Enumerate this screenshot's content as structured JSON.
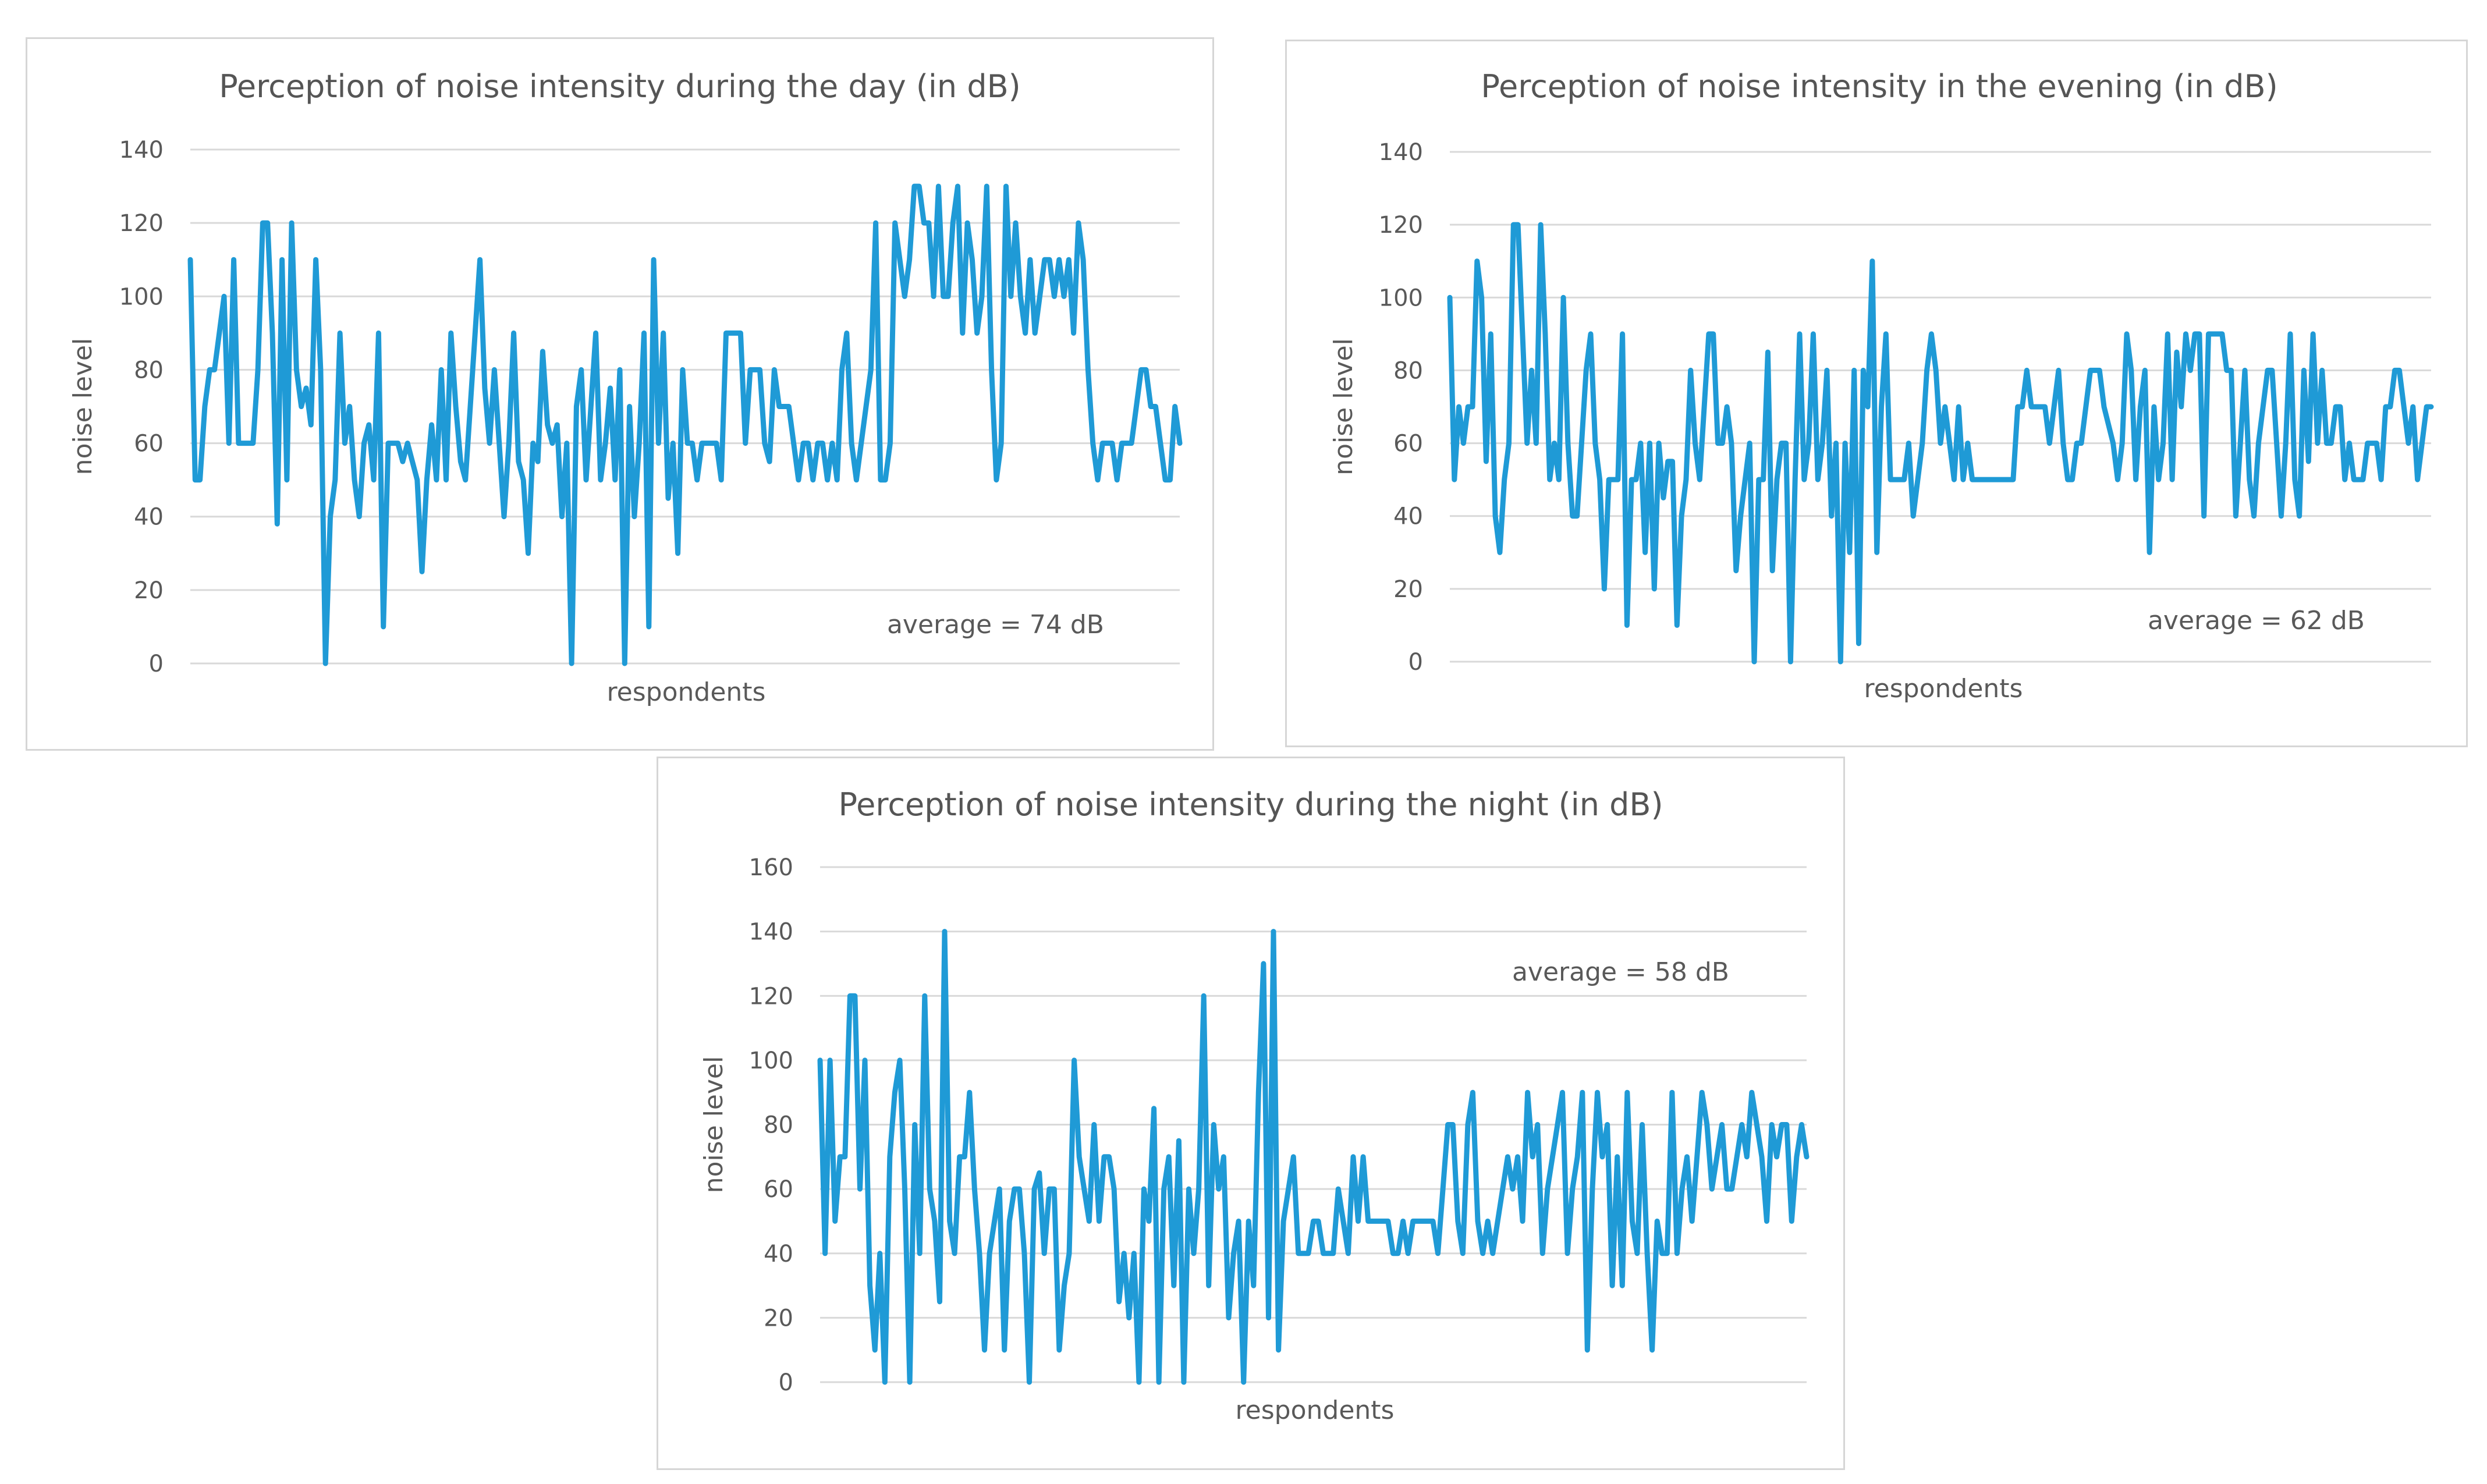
{
  "chart_data": [
    {
      "id": "day",
      "type": "line",
      "title": "Perception of noise intensity during the day (in dB)",
      "xlabel": "respondents",
      "ylabel": "noise level",
      "ylim": [
        0,
        140
      ],
      "yticks": [
        0,
        20,
        40,
        60,
        80,
        100,
        120,
        140
      ],
      "annotation": "average = 74 dB",
      "grid": true,
      "series": [
        {
          "name": "noise level",
          "color": "#1f9ad6",
          "values": [
            110,
            50,
            50,
            70,
            80,
            80,
            90,
            100,
            60,
            110,
            60,
            60,
            60,
            60,
            80,
            120,
            120,
            90,
            38,
            110,
            50,
            120,
            80,
            70,
            75,
            65,
            110,
            80,
            0,
            40,
            50,
            90,
            60,
            70,
            50,
            40,
            60,
            65,
            50,
            90,
            10,
            60,
            60,
            60,
            55,
            60,
            55,
            50,
            25,
            50,
            65,
            50,
            80,
            50,
            90,
            70,
            55,
            50,
            70,
            90,
            110,
            75,
            60,
            80,
            60,
            40,
            60,
            90,
            55,
            50,
            30,
            60,
            55,
            85,
            65,
            60,
            65,
            40,
            60,
            0,
            70,
            80,
            50,
            70,
            90,
            50,
            60,
            75,
            50,
            80,
            0,
            70,
            40,
            60,
            90,
            10,
            110,
            60,
            90,
            45,
            60,
            30,
            80,
            60,
            60,
            50,
            60,
            60,
            60,
            60,
            50,
            90,
            90,
            90,
            90,
            60,
            80,
            80,
            80,
            60,
            55,
            80,
            70,
            70,
            70,
            60,
            50,
            60,
            60,
            50,
            60,
            60,
            50,
            60,
            50,
            80,
            90,
            60,
            50,
            60,
            70,
            80,
            120,
            50,
            50,
            60,
            120,
            110,
            100,
            110,
            130,
            130,
            120,
            120,
            100,
            130,
            100,
            100,
            120,
            130,
            90,
            120,
            110,
            90,
            100,
            130,
            80,
            50,
            60,
            130,
            100,
            120,
            100,
            90,
            110,
            90,
            100,
            110,
            110,
            100,
            110,
            100,
            110,
            90,
            120,
            110,
            80,
            60,
            50,
            60,
            60,
            60,
            50,
            60,
            60,
            60,
            70,
            80,
            80,
            70,
            70,
            60,
            50,
            50,
            70,
            60
          ]
        }
      ]
    },
    {
      "id": "evening",
      "type": "line",
      "title": "Perception of noise intensity in the evening (in dB)",
      "xlabel": "respondents",
      "ylabel": "noise level",
      "ylim": [
        0,
        140
      ],
      "yticks": [
        0,
        20,
        40,
        60,
        80,
        100,
        120,
        140
      ],
      "annotation": "average = 62 dB",
      "grid": true,
      "series": [
        {
          "name": "noise level",
          "color": "#1f9ad6",
          "values": [
            100,
            50,
            70,
            60,
            70,
            70,
            110,
            100,
            55,
            90,
            40,
            30,
            50,
            60,
            120,
            120,
            90,
            60,
            80,
            60,
            120,
            90,
            50,
            60,
            50,
            100,
            60,
            40,
            40,
            60,
            80,
            90,
            60,
            50,
            20,
            50,
            50,
            50,
            90,
            10,
            50,
            50,
            60,
            30,
            60,
            20,
            60,
            45,
            55,
            55,
            10,
            40,
            50,
            80,
            60,
            50,
            70,
            90,
            90,
            60,
            60,
            70,
            60,
            25,
            40,
            50,
            60,
            0,
            50,
            50,
            85,
            25,
            50,
            60,
            60,
            0,
            50,
            90,
            50,
            60,
            90,
            50,
            60,
            80,
            40,
            60,
            0,
            60,
            30,
            80,
            5,
            80,
            70,
            110,
            30,
            70,
            90,
            50,
            50,
            50,
            50,
            60,
            40,
            50,
            60,
            80,
            90,
            80,
            60,
            70,
            60,
            50,
            70,
            50,
            60,
            50,
            50,
            50,
            50,
            50,
            50,
            50,
            50,
            50,
            50,
            70,
            70,
            80,
            70,
            70,
            70,
            70,
            60,
            70,
            80,
            60,
            50,
            50,
            60,
            60,
            70,
            80,
            80,
            80,
            70,
            65,
            60,
            50,
            60,
            90,
            80,
            50,
            70,
            80,
            30,
            70,
            50,
            60,
            90,
            50,
            85,
            70,
            90,
            80,
            90,
            90,
            40,
            90,
            90,
            90,
            90,
            80,
            80,
            40,
            60,
            80,
            50,
            40,
            60,
            70,
            80,
            80,
            60,
            40,
            60,
            90,
            50,
            40,
            80,
            55,
            90,
            60,
            80,
            60,
            60,
            70,
            70,
            50,
            60,
            50,
            50,
            50,
            60,
            60,
            60,
            50,
            70,
            70,
            80,
            80,
            70,
            60,
            70,
            50,
            60,
            70,
            70
          ]
        }
      ]
    },
    {
      "id": "night",
      "type": "line",
      "title": "Perception of noise intensity during the night (in dB)",
      "xlabel": "respondents",
      "ylabel": "noise level",
      "ylim": [
        0,
        160
      ],
      "yticks": [
        0,
        20,
        40,
        60,
        80,
        100,
        120,
        140,
        160
      ],
      "annotation": "average = 58 dB",
      "grid": true,
      "series": [
        {
          "name": "noise level",
          "color": "#1f9ad6",
          "values": [
            100,
            40,
            100,
            50,
            70,
            70,
            120,
            120,
            60,
            100,
            30,
            10,
            40,
            0,
            70,
            90,
            100,
            60,
            0,
            80,
            40,
            120,
            60,
            50,
            25,
            140,
            50,
            40,
            70,
            70,
            90,
            60,
            40,
            10,
            40,
            50,
            60,
            10,
            50,
            60,
            60,
            40,
            0,
            60,
            65,
            40,
            60,
            60,
            10,
            30,
            40,
            100,
            70,
            60,
            50,
            80,
            50,
            70,
            70,
            60,
            25,
            40,
            20,
            40,
            0,
            60,
            50,
            85,
            0,
            60,
            70,
            30,
            75,
            0,
            60,
            40,
            60,
            120,
            30,
            80,
            60,
            70,
            20,
            40,
            50,
            0,
            50,
            30,
            90,
            130,
            20,
            140,
            10,
            50,
            60,
            70,
            40,
            40,
            40,
            50,
            50,
            40,
            40,
            40,
            60,
            50,
            40,
            70,
            50,
            70,
            50,
            50,
            50,
            50,
            50,
            40,
            40,
            50,
            40,
            50,
            50,
            50,
            50,
            50,
            40,
            60,
            80,
            80,
            50,
            40,
            80,
            90,
            50,
            40,
            50,
            40,
            50,
            60,
            70,
            60,
            70,
            50,
            90,
            70,
            80,
            40,
            60,
            70,
            80,
            90,
            40,
            60,
            70,
            90,
            10,
            60,
            90,
            70,
            80,
            30,
            70,
            30,
            90,
            50,
            40,
            80,
            40,
            10,
            50,
            40,
            40,
            90,
            40,
            60,
            70,
            50,
            70,
            90,
            80,
            60,
            70,
            80,
            60,
            60,
            70,
            80,
            70,
            90,
            80,
            70,
            50,
            80,
            70,
            80,
            80,
            50,
            70,
            80,
            70
          ]
        }
      ]
    }
  ]
}
